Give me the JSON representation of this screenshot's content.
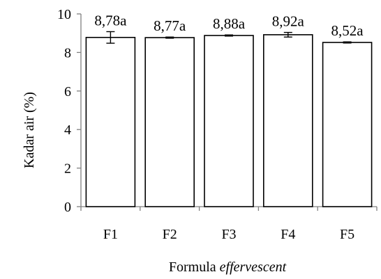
{
  "chart_data": {
    "type": "bar",
    "categories": [
      "F1",
      "F2",
      "F3",
      "F4",
      "F5"
    ],
    "values": [
      8.78,
      8.77,
      8.88,
      8.92,
      8.52
    ],
    "errors": [
      0.3,
      0.03,
      0.03,
      0.12,
      0.03
    ],
    "data_labels": [
      "8,78a",
      "8,77a",
      "8,88a",
      "8,92a",
      "8,52a"
    ],
    "ylabel": "Kadar  air (%)",
    "xlabel": {
      "main": "Formula ",
      "italic": "effervescent"
    },
    "ylim": [
      0,
      10
    ],
    "yticks": [
      0,
      2,
      4,
      6,
      8,
      10
    ],
    "grid": false,
    "colors": {
      "bar_fill": "#ffffff",
      "bar_stroke": "#000000",
      "axis": "#808080"
    }
  }
}
